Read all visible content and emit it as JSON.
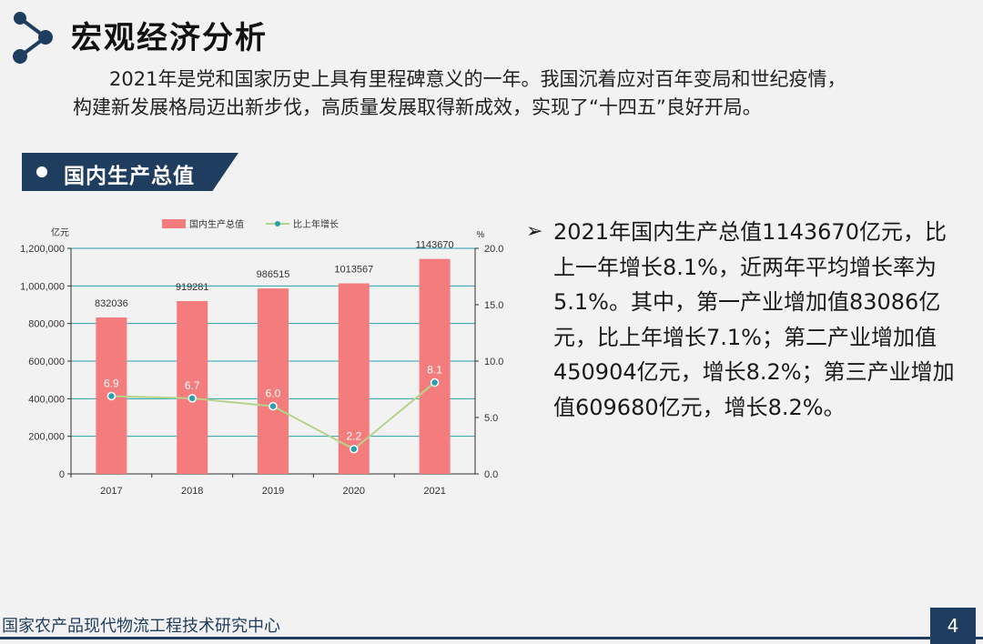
{
  "header": {
    "title": "宏观经济分析",
    "icon": "network-nodes-icon"
  },
  "intro": {
    "line1": "2021年是党和国家历史上具有里程碑意义的一年。我国沉着应对百年变局和世纪疫情，",
    "line2": "构建新发展格局迈出新步伐，高质量发展取得新成效，实现了“十四五”良好开局。"
  },
  "section": {
    "label": "国内生产总值"
  },
  "chart_data": {
    "type": "bar",
    "categories": [
      "2017",
      "2018",
      "2019",
      "2020",
      "2021"
    ],
    "series": [
      {
        "name": "国内生产总值",
        "type": "bar",
        "axis": "left",
        "values": [
          832036,
          919281,
          986515,
          1013567,
          1143670
        ],
        "color": "#f47c7c"
      },
      {
        "name": "比上年增长",
        "type": "line",
        "axis": "right",
        "values": [
          6.9,
          6.7,
          6.0,
          2.2,
          8.1
        ],
        "color": "#b5d48a"
      }
    ],
    "bar_labels": [
      "832036",
      "919281",
      "986515",
      "1013567",
      "1143670"
    ],
    "line_labels": [
      "6.9",
      "6.7",
      "6.0",
      "2.2",
      "8.1"
    ],
    "ylabel": "亿元",
    "y2label": "%",
    "ylim": [
      0,
      1200000
    ],
    "y2lim": [
      0,
      20
    ],
    "y_ticks": [
      "0",
      "200,000",
      "400,000",
      "600,000",
      "800,000",
      "1,000,000",
      "1,200,000"
    ],
    "y2_ticks": [
      "0.0",
      "5.0",
      "10.0",
      "15.0",
      "20.0"
    ],
    "grid": true,
    "legend": "top-center",
    "gridline_color": "#2aa0ae",
    "marker_color": "#2a9fb0"
  },
  "summary": {
    "arrow": "➢",
    "text": "2021年国内生产总值1143670亿元，比上一年增长8.1%，近两年平均增长率为5.1%。其中，第一产业增加值83086亿元，比上年增长7.1%；第二产业增加值450904亿元，增长8.2%；第三产业增加值609680亿元，增长8.2%。"
  },
  "footer": {
    "org": "国家农产品现代物流工程技术研究中心",
    "page_number": "4"
  },
  "colors": {
    "navy": "#1f3d5e",
    "background": "#f2f2f2"
  }
}
